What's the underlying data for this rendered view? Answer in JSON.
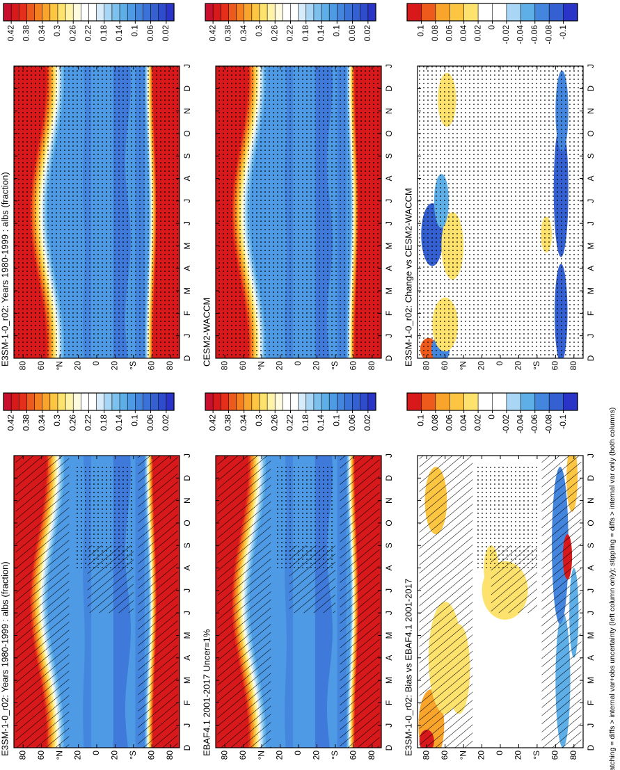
{
  "chart_data": [
    {
      "type": "contour",
      "title": "E3SM-1-0_r02: Years 1980-1999 : albs (fraction)",
      "categories": [
        "D",
        "J",
        "F",
        "M",
        "A",
        "M",
        "J",
        "J",
        "A",
        "S",
        "O",
        "N",
        "D",
        "J"
      ],
      "ylim": [
        -90,
        90
      ],
      "yticks": [
        80,
        60,
        {
          "value": 40,
          "label": "°N"
        },
        20,
        0,
        {
          "value": -20,
          "label": "20"
        },
        {
          "value": -40,
          "label": "°S"
        },
        {
          "value": -60,
          "label": "60"
        },
        {
          "value": -80,
          "label": "80"
        }
      ],
      "colorbar": {
        "lim": [
          0,
          0.44
        ],
        "ticks": [
          0.42,
          0.38,
          0.34,
          0.3,
          0.26,
          0.22,
          0.18,
          0.14,
          0.1,
          0.06,
          0.02
        ],
        "colors": [
          "#c8102e",
          "#d7191c",
          "#e4301a",
          "#ee5a1b",
          "#f4801f",
          "#f9a52c",
          "#fcc542",
          "#fde26e",
          "#fef3a6",
          "#fffbe0",
          "#ffffff",
          "#ffffff",
          "#d6ecfb",
          "#a9d6f5",
          "#7cc0ee",
          "#5eaee8",
          "#4f9ae4",
          "#4486de",
          "#3b72d8",
          "#3460d2",
          "#2f4ccc",
          "#2a34c6"
        ]
      },
      "hatching": true,
      "stippling": true
    },
    {
      "type": "contour",
      "title": "EBAF4.1 2001-2017 Uncer=1%",
      "categories": [
        "D",
        "J",
        "F",
        "M",
        "A",
        "M",
        "J",
        "J",
        "A",
        "S",
        "O",
        "N",
        "D",
        "J"
      ],
      "ylim": [
        -90,
        90
      ],
      "yticks": [
        80,
        60,
        {
          "value": 40,
          "label": "°N"
        },
        20,
        0,
        {
          "value": -20,
          "label": "20"
        },
        {
          "value": -40,
          "label": "°S"
        },
        {
          "value": -60,
          "label": "60"
        },
        {
          "value": -80,
          "label": "80"
        }
      ],
      "colorbar": {
        "lim": [
          0,
          0.44
        ],
        "ticks": [
          0.42,
          0.38,
          0.34,
          0.3,
          0.26,
          0.22,
          0.18,
          0.14,
          0.1,
          0.06,
          0.02
        ],
        "colors": [
          "#c8102e",
          "#d7191c",
          "#e4301a",
          "#ee5a1b",
          "#f4801f",
          "#f9a52c",
          "#fcc542",
          "#fde26e",
          "#fef3a6",
          "#fffbe0",
          "#ffffff",
          "#ffffff",
          "#d6ecfb",
          "#a9d6f5",
          "#7cc0ee",
          "#5eaee8",
          "#4f9ae4",
          "#4486de",
          "#3b72d8",
          "#3460d2",
          "#2f4ccc",
          "#2a34c6"
        ]
      },
      "hatching": true,
      "stippling": true
    },
    {
      "type": "contour",
      "title": "E3SM-1-0_r02: Bias vs EBAF4.1 2001-2017",
      "categories": [
        "D",
        "J",
        "F",
        "M",
        "A",
        "M",
        "J",
        "J",
        "A",
        "S",
        "O",
        "N",
        "D",
        "J"
      ],
      "ylim": [
        -90,
        90
      ],
      "yticks": [
        80,
        60,
        {
          "value": 40,
          "label": "°N"
        },
        20,
        0,
        {
          "value": -20,
          "label": "20"
        },
        {
          "value": -40,
          "label": "°S"
        },
        {
          "value": -60,
          "label": "60"
        },
        {
          "value": -80,
          "label": "80"
        }
      ],
      "colorbar": {
        "lim": [
          -0.12,
          0.12
        ],
        "ticks": [
          0.1,
          0.08,
          0.06,
          0.04,
          0.02,
          0,
          -0.02,
          -0.04,
          -0.06,
          -0.08,
          -0.1
        ],
        "colors": [
          "#d7191c",
          "#ee5a1b",
          "#f9a52c",
          "#fcc542",
          "#fde26e",
          "#ffffff",
          "#ffffff",
          "#a9d6f5",
          "#5eaee8",
          "#4486de",
          "#3460d2",
          "#2a34c6"
        ]
      },
      "hatching": true,
      "stippling": true
    },
    {
      "type": "contour",
      "title": "E3SM-1-0_r02: Years 1980-1999 : albs (fraction)",
      "categories": [
        "D",
        "J",
        "F",
        "M",
        "A",
        "M",
        "J",
        "J",
        "A",
        "S",
        "O",
        "N",
        "D",
        "J"
      ],
      "ylim": [
        -90,
        90
      ],
      "yticks": [
        80,
        60,
        {
          "value": 40,
          "label": "°N"
        },
        20,
        0,
        {
          "value": -20,
          "label": "20"
        },
        {
          "value": -40,
          "label": "°S"
        },
        {
          "value": -60,
          "label": "60"
        },
        {
          "value": -80,
          "label": "80"
        }
      ],
      "colorbar": {
        "lim": [
          0,
          0.44
        ],
        "ticks": [
          0.42,
          0.38,
          0.34,
          0.3,
          0.26,
          0.22,
          0.18,
          0.14,
          0.1,
          0.06,
          0.02
        ],
        "colors": [
          "#c8102e",
          "#d7191c",
          "#e4301a",
          "#ee5a1b",
          "#f4801f",
          "#f9a52c",
          "#fcc542",
          "#fde26e",
          "#fef3a6",
          "#fffbe0",
          "#ffffff",
          "#ffffff",
          "#d6ecfb",
          "#a9d6f5",
          "#7cc0ee",
          "#5eaee8",
          "#4f9ae4",
          "#4486de",
          "#3b72d8",
          "#3460d2",
          "#2f4ccc",
          "#2a34c6"
        ]
      },
      "hatching": false,
      "stippling": true
    },
    {
      "type": "contour",
      "title": "CESM2-WACCM",
      "categories": [
        "D",
        "J",
        "F",
        "M",
        "A",
        "M",
        "J",
        "J",
        "A",
        "S",
        "O",
        "N",
        "D",
        "J"
      ],
      "ylim": [
        -90,
        90
      ],
      "yticks": [
        80,
        60,
        {
          "value": 40,
          "label": "°N"
        },
        20,
        0,
        {
          "value": -20,
          "label": "20"
        },
        {
          "value": -40,
          "label": "°S"
        },
        {
          "value": -60,
          "label": "60"
        },
        {
          "value": -80,
          "label": "80"
        }
      ],
      "colorbar": {
        "lim": [
          0,
          0.44
        ],
        "ticks": [
          0.42,
          0.38,
          0.34,
          0.3,
          0.26,
          0.22,
          0.18,
          0.14,
          0.1,
          0.06,
          0.02
        ],
        "colors": [
          "#c8102e",
          "#d7191c",
          "#e4301a",
          "#ee5a1b",
          "#f4801f",
          "#f9a52c",
          "#fcc542",
          "#fde26e",
          "#fef3a6",
          "#fffbe0",
          "#ffffff",
          "#ffffff",
          "#d6ecfb",
          "#a9d6f5",
          "#7cc0ee",
          "#5eaee8",
          "#4f9ae4",
          "#4486de",
          "#3b72d8",
          "#3460d2",
          "#2f4ccc",
          "#2a34c6"
        ]
      },
      "hatching": false,
      "stippling": true
    },
    {
      "type": "contour",
      "title": "E3SM-1-0_r02: Change vs CESM2-WACCM",
      "categories": [
        "D",
        "J",
        "F",
        "M",
        "A",
        "M",
        "J",
        "J",
        "A",
        "S",
        "O",
        "N",
        "D",
        "J"
      ],
      "ylim": [
        -90,
        90
      ],
      "yticks": [
        80,
        60,
        {
          "value": 40,
          "label": "°N"
        },
        20,
        0,
        {
          "value": -20,
          "label": "20"
        },
        {
          "value": -40,
          "label": "°S"
        },
        {
          "value": -60,
          "label": "60"
        },
        {
          "value": -80,
          "label": "80"
        }
      ],
      "colorbar": {
        "lim": [
          -0.12,
          0.12
        ],
        "ticks": [
          0.1,
          0.08,
          0.06,
          0.04,
          0.02,
          0,
          -0.02,
          -0.04,
          -0.06,
          -0.08,
          -0.1
        ],
        "colors": [
          "#d7191c",
          "#ee5a1b",
          "#f9a52c",
          "#fcc542",
          "#fde26e",
          "#ffffff",
          "#ffffff",
          "#a9d6f5",
          "#5eaee8",
          "#4486de",
          "#3460d2",
          "#2a34c6"
        ]
      },
      "hatching": false,
      "stippling": true
    }
  ],
  "footnote": "hatching = diffs > internal var+obs uncertainty (left column only); stippling = diffs > internal var only (both columns)"
}
